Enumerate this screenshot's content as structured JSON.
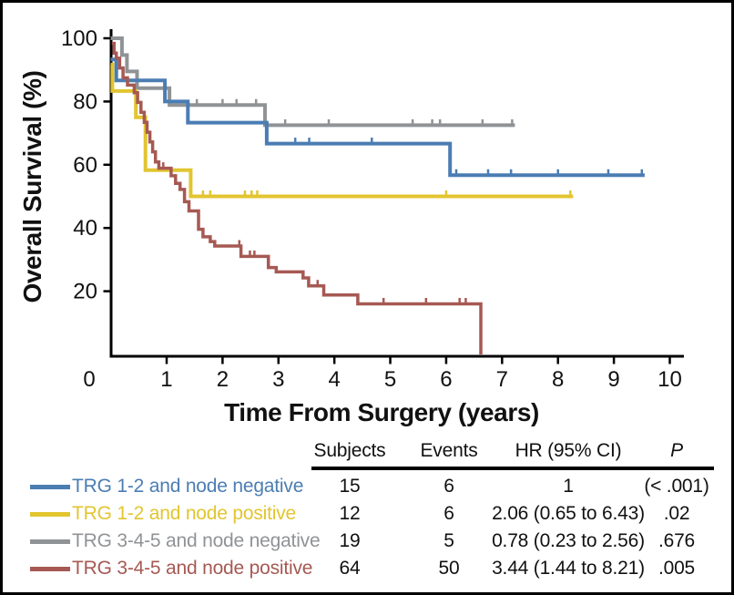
{
  "chart_data": {
    "type": "line",
    "subtype": "kaplan-meier-step",
    "title": "",
    "xlabel": "Time From Surgery (years)",
    "ylabel": "Overall Survival (%)",
    "xlim": [
      0,
      10
    ],
    "ylim": [
      0,
      100
    ],
    "xticks": [
      0,
      1,
      2,
      3,
      4,
      5,
      6,
      7,
      8,
      9,
      10
    ],
    "yticks": [
      20,
      40,
      60,
      80,
      100
    ],
    "grid": "off",
    "axis_color": "#000000",
    "series": [
      {
        "name": "TRG 1-2 and node negative",
        "color": "#4b7db3",
        "width": 4,
        "steps": [
          [
            0,
            93.3
          ],
          [
            0.1,
            86.7
          ],
          [
            0.97,
            80
          ],
          [
            1.38,
            73.3
          ],
          [
            2.79,
            66.7
          ],
          [
            6.07,
            56.7
          ]
        ],
        "end": 9.55,
        "censors": [
          [
            3.3,
            66.7
          ],
          [
            3.55,
            66.7
          ],
          [
            4.67,
            66.7
          ],
          [
            6.18,
            56.7
          ],
          [
            6.75,
            56.7
          ],
          [
            7.16,
            56.7
          ],
          [
            8.0,
            56.7
          ],
          [
            8.9,
            56.7
          ],
          [
            9.5,
            56.7
          ]
        ]
      },
      {
        "name": "TRG 1-2 and node positive",
        "color": "#e2c530",
        "width": 4,
        "steps": [
          [
            0,
            91.7
          ],
          [
            0.03,
            83.3
          ],
          [
            0.45,
            75
          ],
          [
            0.62,
            58.3
          ],
          [
            1.43,
            50
          ]
        ],
        "end": 8.27,
        "censors": [
          [
            1.65,
            50
          ],
          [
            1.78,
            50
          ],
          [
            2.4,
            50
          ],
          [
            2.52,
            50
          ],
          [
            2.62,
            50
          ],
          [
            6.0,
            50
          ],
          [
            8.22,
            50
          ]
        ]
      },
      {
        "name": "TRG 3-4-5 and node negative",
        "color": "#909396",
        "width": 4,
        "steps": [
          [
            0,
            100
          ],
          [
            0.2,
            94.7
          ],
          [
            0.29,
            89.5
          ],
          [
            0.47,
            84.2
          ],
          [
            1.05,
            78.9
          ],
          [
            2.76,
            72.5
          ]
        ],
        "end": 7.23,
        "censors": [
          [
            1.54,
            78.9
          ],
          [
            2.0,
            78.9
          ],
          [
            2.25,
            78.9
          ],
          [
            2.6,
            78.9
          ],
          [
            3.12,
            72.5
          ],
          [
            3.9,
            72.5
          ],
          [
            5.4,
            72.5
          ],
          [
            5.75,
            72.5
          ],
          [
            5.89,
            72.5
          ],
          [
            6.65,
            72.5
          ],
          [
            7.18,
            72.5
          ]
        ]
      },
      {
        "name": "TRG 3-4-5 and node positive",
        "color": "#a65953",
        "width": 3.5,
        "steps": [
          [
            0.02,
            98.4
          ],
          [
            0.06,
            95.3
          ],
          [
            0.1,
            93.7
          ],
          [
            0.16,
            90.6
          ],
          [
            0.22,
            87.5
          ],
          [
            0.3,
            85.2
          ],
          [
            0.42,
            82.8
          ],
          [
            0.48,
            79.7
          ],
          [
            0.54,
            76.6
          ],
          [
            0.6,
            73.4
          ],
          [
            0.65,
            70.3
          ],
          [
            0.7,
            67.2
          ],
          [
            0.75,
            64.1
          ],
          [
            0.8,
            60.9
          ],
          [
            0.86,
            58.9
          ],
          [
            1.08,
            56.5
          ],
          [
            1.16,
            54.1
          ],
          [
            1.24,
            52.2
          ],
          [
            1.32,
            48.3
          ],
          [
            1.4,
            45.4
          ],
          [
            1.57,
            39.6
          ],
          [
            1.65,
            37.2
          ],
          [
            1.78,
            35.7
          ],
          [
            1.86,
            34.3
          ],
          [
            2.33,
            31.0
          ],
          [
            2.82,
            27.5
          ],
          [
            2.96,
            26.1
          ],
          [
            3.44,
            24.2
          ],
          [
            3.54,
            21.7
          ],
          [
            3.81,
            18.8
          ],
          [
            4.42,
            16.0
          ],
          [
            6.62,
            0
          ]
        ],
        "end": null,
        "censors": [
          [
            0.94,
            58.9
          ],
          [
            2.3,
            34.3
          ],
          [
            2.49,
            31.0
          ],
          [
            2.57,
            31.0
          ],
          [
            3.7,
            21.7
          ],
          [
            4.88,
            16.0
          ],
          [
            5.64,
            16.0
          ],
          [
            6.24,
            16.0
          ],
          [
            6.35,
            16.0
          ]
        ]
      }
    ]
  },
  "table": {
    "headers": {
      "subjects": "Subjects",
      "events": "Events",
      "hr": "HR (95% CI)",
      "p": "P"
    },
    "rows": [
      {
        "label": "TRG 1-2 and node negative",
        "color": "#4b7db3",
        "subjects": "15",
        "events": "6",
        "hr": "1",
        "p": "(< .001)"
      },
      {
        "label": "TRG 1-2 and node positive",
        "color": "#e2c530",
        "subjects": "12",
        "events": "6",
        "hr": "2.06 (0.65 to 6.43)",
        "p": ".02"
      },
      {
        "label": "TRG 3-4-5 and node negative",
        "color": "#909396",
        "subjects": "19",
        "events": "5",
        "hr": "0.78 (0.23 to 2.56)",
        "p": ".676"
      },
      {
        "label": "TRG 3-4-5 and node positive",
        "color": "#a65953",
        "subjects": "64",
        "events": "50",
        "hr": "3.44 (1.44 to 8.21)",
        "p": ".005"
      }
    ]
  }
}
